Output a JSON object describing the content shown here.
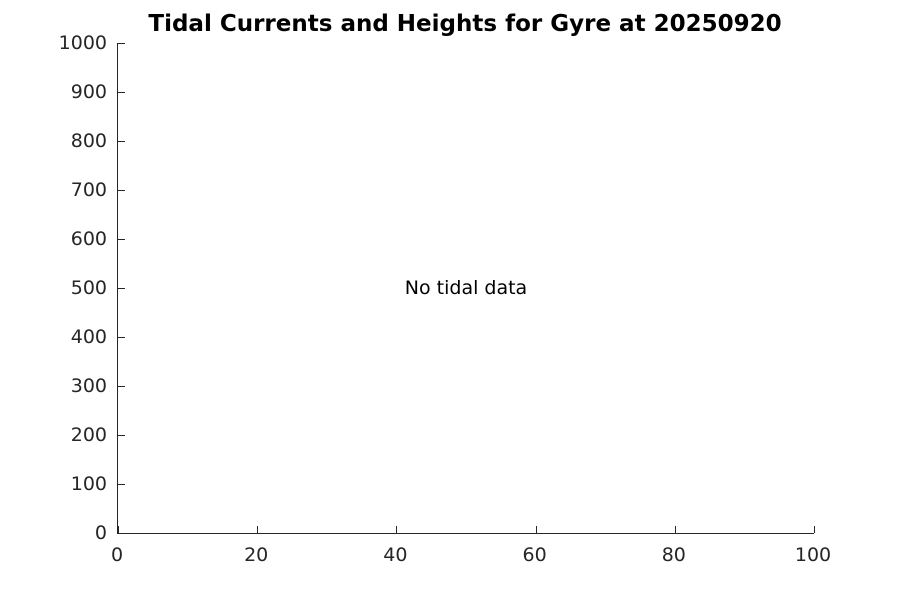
{
  "figure": {
    "background": "#ffffff"
  },
  "chart_data": {
    "type": "line",
    "title": "Tidal Currents and Heights for Gyre at 20250920",
    "series": [],
    "annotations": [
      {
        "text": "No tidal data",
        "x": 50,
        "y": 500
      }
    ],
    "xlabel": "",
    "ylabel": "",
    "xlim": [
      0,
      100
    ],
    "ylim": [
      0,
      1000
    ],
    "x_ticks": [
      0,
      20,
      40,
      60,
      80,
      100
    ],
    "y_ticks": [
      0,
      100,
      200,
      300,
      400,
      500,
      600,
      700,
      800,
      900,
      1000
    ],
    "grid": false,
    "legend": null,
    "box": false,
    "tick_direction": "in",
    "axis_color": "#262626",
    "title_color": "#000000",
    "annotation_color": "#000000"
  }
}
